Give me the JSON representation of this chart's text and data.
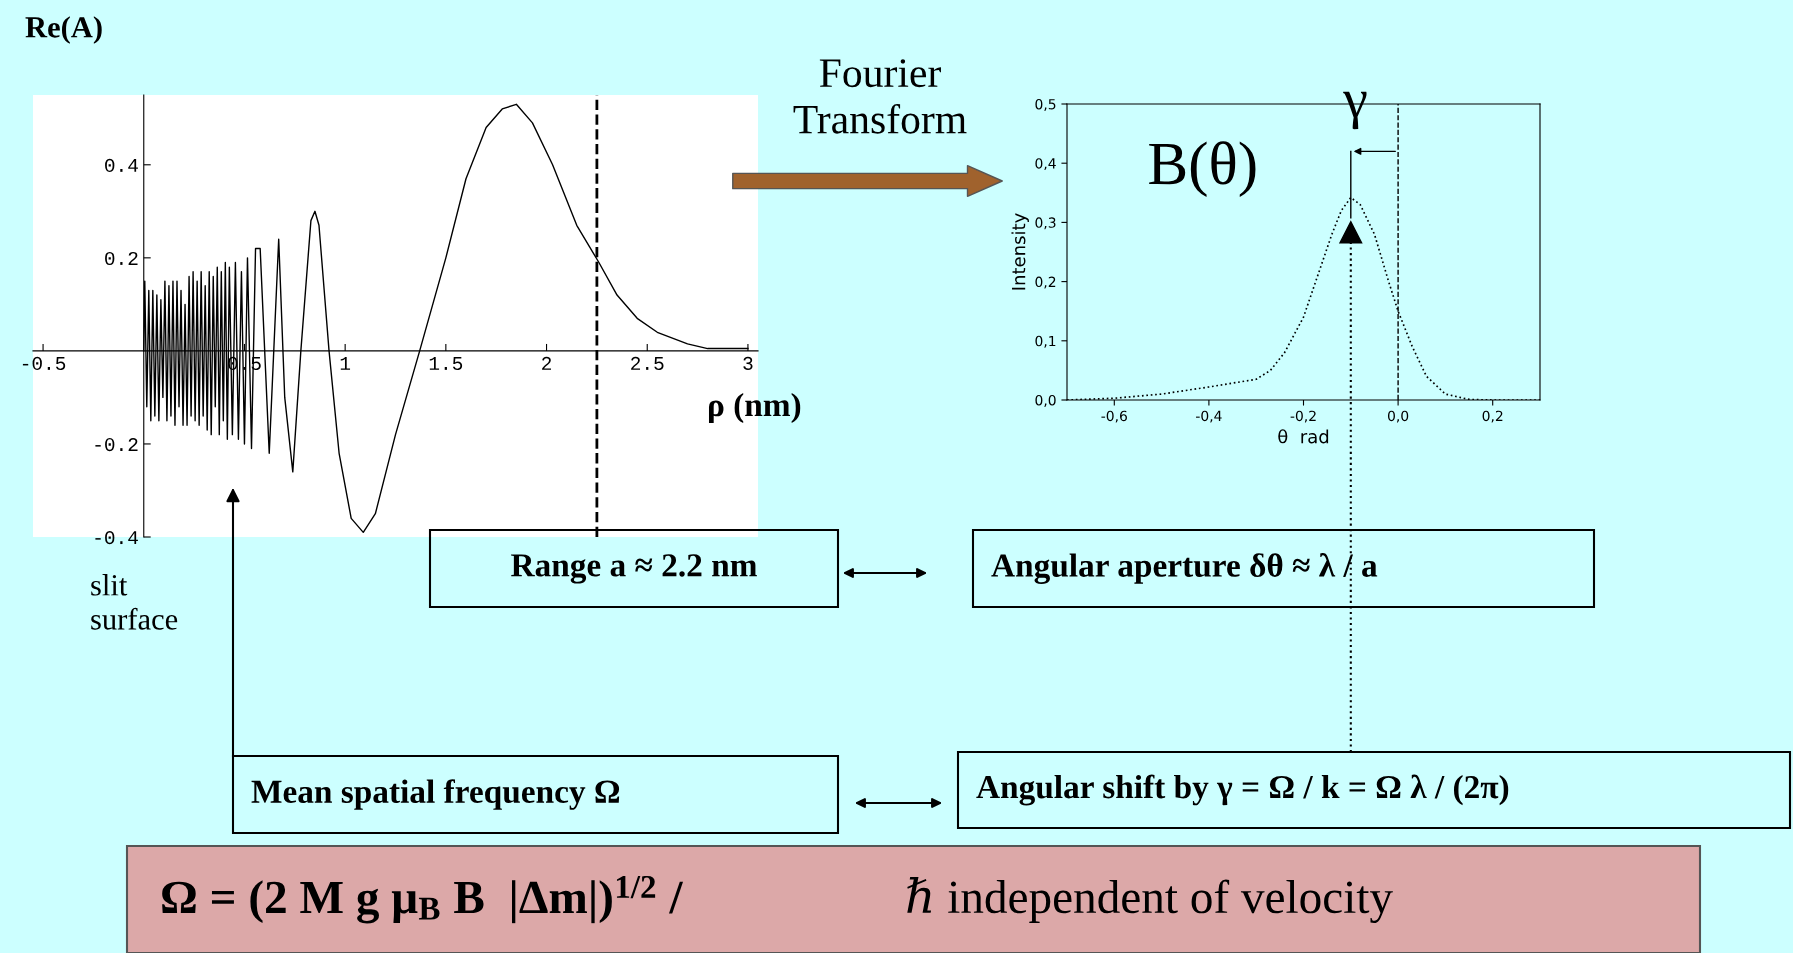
{
  "chart_data": [
    {
      "type": "line",
      "ylabel": "Re(A)",
      "xlabel": "ρ (nm)",
      "line_style": "solid",
      "grid": false,
      "legend": false,
      "x": [
        0.0,
        0.005,
        0.015,
        0.025,
        0.035,
        0.045,
        0.055,
        0.065,
        0.075,
        0.085,
        0.095,
        0.105,
        0.115,
        0.125,
        0.135,
        0.145,
        0.155,
        0.165,
        0.175,
        0.185,
        0.195,
        0.205,
        0.215,
        0.225,
        0.235,
        0.245,
        0.255,
        0.265,
        0.275,
        0.285,
        0.295,
        0.305,
        0.315,
        0.325,
        0.335,
        0.345,
        0.355,
        0.365,
        0.375,
        0.385,
        0.395,
        0.405,
        0.415,
        0.425,
        0.44,
        0.455,
        0.47,
        0.485,
        0.5,
        0.515,
        0.535,
        0.555,
        0.578,
        0.623,
        0.67,
        0.7,
        0.74,
        0.78,
        0.83,
        0.85,
        0.87,
        0.92,
        0.97,
        1.03,
        1.09,
        1.15,
        1.25,
        1.37,
        1.5,
        1.6,
        1.7,
        1.78,
        1.85,
        1.93,
        2.03,
        2.15,
        2.26,
        2.35,
        2.45,
        2.55,
        2.7,
        2.8,
        3.0
      ],
      "series": [
        {
          "color": "#000000",
          "values": [
            0.0,
            0.15,
            -0.12,
            0.13,
            -0.15,
            0.13,
            -0.14,
            0.12,
            -0.15,
            0.11,
            -0.1,
            0.15,
            -0.15,
            0.14,
            -0.14,
            0.15,
            -0.16,
            0.15,
            -0.12,
            0.13,
            -0.16,
            0.1,
            -0.16,
            0.16,
            -0.14,
            0.17,
            -0.15,
            0.15,
            -0.16,
            0.17,
            -0.14,
            0.14,
            -0.17,
            0.17,
            -0.18,
            0.16,
            -0.12,
            0.18,
            -0.18,
            0.17,
            -0.15,
            0.19,
            -0.19,
            0.18,
            -0.18,
            0.19,
            -0.19,
            0.17,
            -0.2,
            0.2,
            -0.21,
            0.22,
            0.22,
            -0.22,
            0.24,
            -0.1,
            -0.26,
            0.0,
            0.28,
            0.3,
            0.27,
            0.0,
            -0.22,
            -0.36,
            -0.39,
            -0.35,
            -0.18,
            0.0,
            0.2,
            0.37,
            0.48,
            0.52,
            0.53,
            0.49,
            0.4,
            0.27,
            0.19,
            0.12,
            0.07,
            0.04,
            0.015,
            0.005,
            0.005
          ]
        }
      ],
      "xlim": [
        -0.55,
        3.05
      ],
      "ylim": [
        -0.4,
        0.55
      ],
      "xticks": [
        -0.5,
        0.5,
        1,
        1.5,
        2,
        2.5,
        3
      ],
      "yticks": [
        -0.4,
        -0.2,
        0.2,
        0.4
      ],
      "ref_lines": [
        {
          "axis": "x",
          "value": 2.25,
          "color": "#000000",
          "line_style": "dashed"
        }
      ],
      "annotations": [
        "Fourier Transform",
        "slit surface",
        "Range a ≈ 2.2 nm",
        "Angular aperture δθ ≈ λ / a",
        "Mean spatial frequency Ω",
        "Angular shift by γ = Ω / k = Ω λ / (2π)",
        "Ω = (2 M g μ$_{B}$ B  |Δm|)$^{1/2}$ /",
        "ℏ independent of velocity"
      ]
    },
    {
      "type": "line",
      "ylabel": "Intensity",
      "xlabel": "θ  rad",
      "line_style": "dotted",
      "grid": false,
      "legend": false,
      "x": [
        -0.7,
        -0.6,
        -0.5,
        -0.4,
        -0.3,
        -0.27,
        -0.24,
        -0.2,
        -0.17,
        -0.14,
        -0.12,
        -0.1,
        -0.08,
        -0.05,
        -0.02,
        0.0,
        0.03,
        0.06,
        0.1,
        0.15,
        0.2,
        0.3
      ],
      "series": [
        {
          "color": "#000000",
          "values": [
            0.0,
            0.003,
            0.01,
            0.022,
            0.035,
            0.05,
            0.08,
            0.14,
            0.21,
            0.28,
            0.32,
            0.342,
            0.33,
            0.28,
            0.2,
            0.15,
            0.09,
            0.04,
            0.01,
            0.001,
            0.0,
            0.0
          ]
        }
      ],
      "xlim": [
        -0.7,
        0.3
      ],
      "ylim": [
        0,
        0.5
      ],
      "xticks": [
        {
          "value": -0.6,
          "label": "-0,6"
        },
        {
          "value": -0.4,
          "label": "-0,4"
        },
        {
          "value": -0.2,
          "label": "-0,2"
        },
        {
          "value": 0.0,
          "label": "0,0"
        },
        {
          "value": 0.2,
          "label": "0,2"
        }
      ],
      "yticks": [
        {
          "value": 0.0,
          "label": "0,0"
        },
        {
          "value": 0.1,
          "label": "0,1"
        },
        {
          "value": 0.2,
          "label": "0,2"
        },
        {
          "value": 0.3,
          "label": "0,3"
        },
        {
          "value": 0.4,
          "label": "0,4"
        },
        {
          "value": 0.5,
          "label": "0,5"
        }
      ],
      "ref_lines": [
        {
          "axis": "x",
          "value": 0.0,
          "color": "#000000",
          "line_style": "dashed"
        },
        {
          "axis": "x",
          "value": -0.1,
          "color": "#000000",
          "line_style": "dotted"
        }
      ],
      "annotations": [
        "B(θ)",
        "γ"
      ]
    }
  ]
}
